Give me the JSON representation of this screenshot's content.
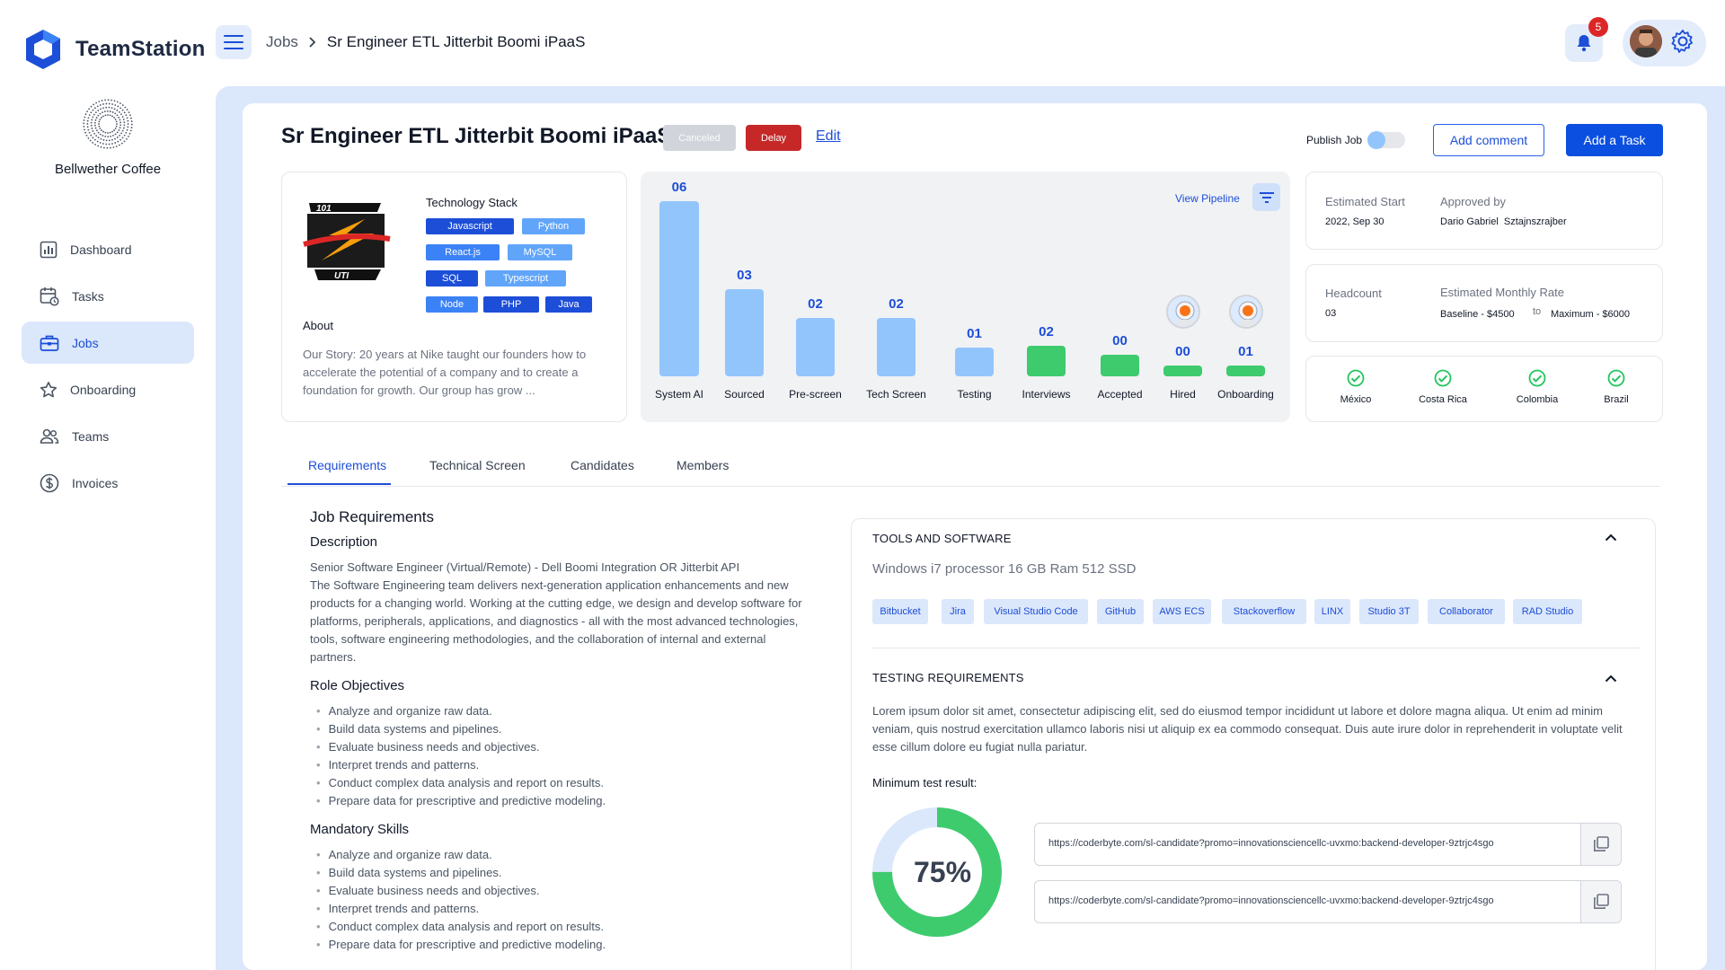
{
  "app": {
    "name": "TeamStation"
  },
  "breadcrumb": {
    "parent": "Jobs",
    "current": "Sr Engineer ETL Jitterbit Boomi iPaaS"
  },
  "notifications": {
    "count": "5"
  },
  "company": {
    "name": "Bellwether Coffee"
  },
  "sidebar": {
    "items": [
      {
        "label": "Dashboard",
        "icon": "dashboard-icon"
      },
      {
        "label": "Tasks",
        "icon": "calendar-icon"
      },
      {
        "label": "Jobs",
        "icon": "briefcase-icon",
        "active": true
      },
      {
        "label": "Onboarding",
        "icon": "star-icon"
      },
      {
        "label": "Teams",
        "icon": "people-icon"
      },
      {
        "label": "Invoices",
        "icon": "dollar-icon"
      }
    ]
  },
  "job": {
    "title": "Sr Engineer ETL Jitterbit Boomi iPaaS",
    "status_canceled": "Canceled",
    "status_delay": "Delay",
    "edit_label": "Edit",
    "publish_label": "Publish Job",
    "publish_on": false,
    "add_comment": "Add comment",
    "add_task": "Add a Task"
  },
  "tech": {
    "title": "Technology Stack",
    "tags": [
      "Javascript",
      "Python",
      "React.js",
      "MySQL",
      "SQL",
      "Typescript",
      "Node",
      "PHP",
      "Java"
    ],
    "about_title": "About",
    "about_text": "Our Story: 20 years at Nike taught our founders how to accelerate the potential of a company and to create a foundation for growth. Our group has grow ..."
  },
  "pipeline": {
    "view_label": "View Pipeline",
    "stages": [
      {
        "label": "System AI",
        "count": "06"
      },
      {
        "label": "Sourced",
        "count": "03"
      },
      {
        "label": "Pre-screen",
        "count": "02"
      },
      {
        "label": "Tech Screen",
        "count": "02"
      },
      {
        "label": "Testing",
        "count": "01"
      },
      {
        "label": "Interviews",
        "count": "02"
      },
      {
        "label": "Accepted",
        "count": "00"
      },
      {
        "label": "Hired",
        "count": "00"
      },
      {
        "label": "Onboarding",
        "count": "01"
      }
    ]
  },
  "info": {
    "est_start_label": "Estimated Start",
    "est_start": "2022, Sep 30",
    "approved_label": "Approved by",
    "approved": "Dario Gabriel  Sztajnszrajber",
    "headcount_label": "Headcount",
    "headcount": "03",
    "rate_label": "Estimated Monthly Rate",
    "rate_min": "Baseline - $4500",
    "rate_to": "to",
    "rate_max": "Maximum - $6000",
    "countries": [
      "México",
      "Costa Rica",
      "Colombia",
      "Brazil"
    ]
  },
  "tabs": [
    "Requirements",
    "Technical Screen",
    "Candidates",
    "Members"
  ],
  "requirements": {
    "title": "Job Requirements",
    "desc_title": "Description",
    "desc": "Senior Software Engineer (Virtual/Remote) - Dell Boomi Integration OR Jitterbit API\nThe Software Engineering team delivers next-generation application enhancements and new products for a changing world. Working at the cutting edge, we design and develop software for platforms, peripherals, applications, and diagnostics - all with the most advanced technologies, tools, software engineering methodologies, and the collaboration of internal and external partners.",
    "role_title": "Role Objectives",
    "role_items": [
      "Analyze and organize raw data.",
      "Build data systems and pipelines.",
      "Evaluate business needs and objectives.",
      "Interpret trends and patterns.",
      "Conduct complex data analysis and report on results.",
      "Prepare data for prescriptive and predictive modeling."
    ],
    "skills_title": "Mandatory Skills",
    "skills_items": [
      "Analyze and organize raw data.",
      "Build data systems and pipelines.",
      "Evaluate business needs and objectives.",
      "Interpret trends and patterns.",
      "Conduct complex data analysis and report on results.",
      "Prepare data for prescriptive and predictive modeling."
    ]
  },
  "tools": {
    "title": "TOOLS AND SOFTWARE",
    "specs": "Windows i7 processor 16 GB Ram 512 SSD",
    "tags": [
      "Bitbucket",
      "Jira",
      "Visual Studio Code",
      "GitHub",
      "AWS ECS",
      "Stackoverflow",
      "LINX",
      "Studio 3T",
      "Collaborator",
      "RAD Studio"
    ]
  },
  "testing": {
    "title": "TESTING REQUIREMENTS",
    "text": "Lorem ipsum dolor sit amet, consectetur adipiscing elit, sed do eiusmod tempor incididunt ut labore et dolore magna aliqua. Ut enim ad minim veniam, quis nostrud exercitation ullamco laboris nisi ut aliquip ex ea commodo consequat. Duis aute irure dolor in reprehenderit in voluptate velit esse cillum dolore eu fugiat nulla pariatur.",
    "min_label": "Minimum test result:",
    "min_value": 0.75,
    "min_text": "75%",
    "links": [
      "https://coderbyte.com/sl-candidate?promo=innovationsciencellc-uvxmo:backend-developer-9ztrjc4sgo",
      "https://coderbyte.com/sl-candidate?promo=innovationsciencellc-uvxmo:backend-developer-9ztrjc4sgo"
    ]
  },
  "colors": {
    "primary": "#1d4ed8",
    "pipeline_blue": "#93c5fd",
    "pipeline_green": "#3ecb6e",
    "delay": "#c62828"
  }
}
